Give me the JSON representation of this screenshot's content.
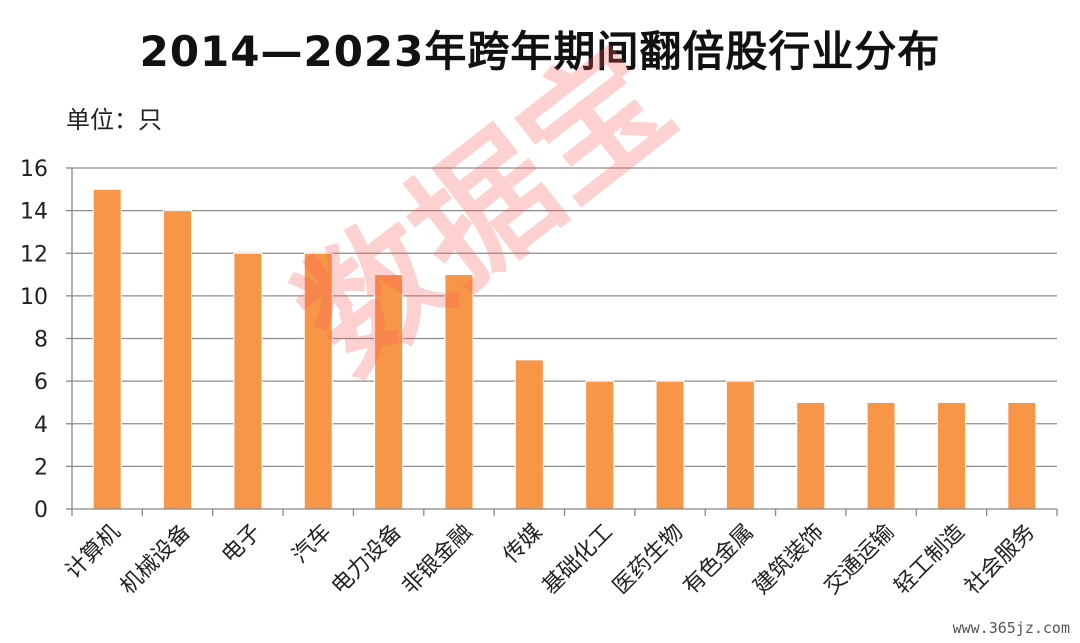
{
  "chart_data": {
    "type": "bar",
    "title": "2014—2023年跨年期间翻倍股行业分布",
    "unit_label": "单位：只",
    "categories": [
      "计算机",
      "机械设备",
      "电子",
      "汽车",
      "电力设备",
      "非银金融",
      "传媒",
      "基础化工",
      "医药生物",
      "有色金属",
      "建筑装饰",
      "交通运输",
      "轻工制造",
      "社会服务"
    ],
    "values": [
      15,
      14,
      12,
      12,
      11,
      11,
      7,
      6,
      6,
      6,
      5,
      5,
      5,
      5
    ],
    "yticks": [
      "0",
      "2",
      "4",
      "6",
      "8",
      "10",
      "12",
      "14",
      "16"
    ],
    "ylim": [
      0,
      16
    ],
    "grid": true,
    "bar_color": "#F79646",
    "xlabel": "",
    "ylabel": ""
  },
  "watermark": "数据宝",
  "site_mark": "www.365jz.com"
}
